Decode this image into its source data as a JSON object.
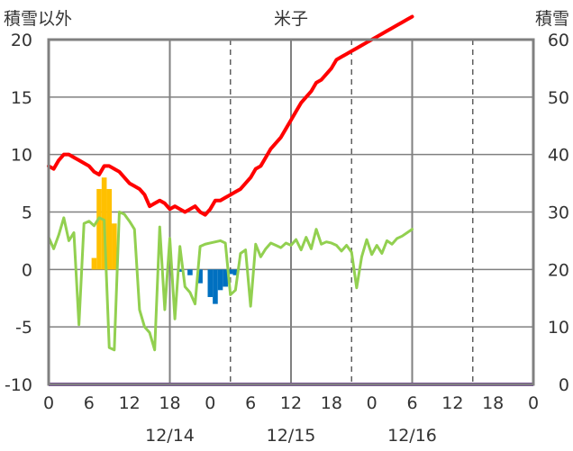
{
  "chart_data": {
    "type": "bar+line",
    "title": "米子",
    "left_axis_title": "積雪以外",
    "right_axis_title": "積雪",
    "left_ylim": [
      -10,
      20
    ],
    "right_ylim": [
      0,
      60
    ],
    "left_yticks": [
      20,
      15,
      10,
      5,
      0,
      -5,
      -10
    ],
    "right_yticks": [
      60,
      50,
      40,
      30,
      20,
      10,
      0
    ],
    "x_hours": [
      0,
      48
    ],
    "x_tick_labels": [
      "0",
      "6",
      "12",
      "18",
      "0",
      "6",
      "12",
      "18",
      "0",
      "6",
      "12",
      "18",
      "0"
    ],
    "date_labels": [
      {
        "label": "12/14",
        "hour": 12
      },
      {
        "label": "12/15",
        "hour": 24
      },
      {
        "label": "12/16",
        "hour": 36
      }
    ],
    "grid": {
      "dashed_hours": [
        12,
        18,
        24,
        30,
        36,
        42
      ],
      "solid_hours": [
        12,
        24,
        36
      ],
      "horizontal_every": 5
    },
    "colors": {
      "precip_pos": "#FFC000",
      "precip_neg": "#0070C0",
      "snow_depth": "#FF0000",
      "temperature": "#92D050",
      "baseline": "#7030A0"
    },
    "series_snow_depth": {
      "axis": "right",
      "color": "#FF0000",
      "x": [
        0,
        0.5,
        1,
        1.5,
        2,
        2.5,
        3,
        3.5,
        4,
        4.5,
        5,
        5.5,
        6,
        6.5,
        7,
        7.5,
        8,
        8.5,
        9,
        9.5,
        10,
        10.5,
        11,
        11.5,
        12,
        12.5,
        13,
        13.5,
        14,
        14.5,
        15,
        15.5,
        16,
        16.5,
        17,
        17.5,
        18,
        18.5,
        19,
        19.5,
        20,
        20.5,
        21,
        21.5,
        22,
        22.5,
        23,
        23.5,
        24,
        24.5,
        25,
        25.5,
        26,
        26.5,
        27,
        27.5,
        28,
        28.5,
        29,
        29.5,
        30,
        30.5,
        31,
        31.5,
        32,
        32.5,
        33,
        33.5,
        34,
        34.5,
        35,
        35.5,
        36
      ],
      "y": [
        38,
        37.5,
        39,
        40,
        40,
        39.5,
        39,
        38.5,
        38,
        37,
        36.5,
        38,
        38,
        37.5,
        37,
        36,
        35,
        34.5,
        34,
        33,
        31,
        31.5,
        32,
        31.5,
        30.5,
        31,
        30.5,
        30,
        30.5,
        31,
        30,
        29.5,
        30.5,
        32,
        32,
        32.5,
        33,
        33.5,
        34,
        35,
        36,
        37.5,
        38,
        39.5,
        41,
        42,
        43,
        44.5,
        46,
        47.5,
        49,
        50,
        51,
        52.5,
        53,
        54,
        55,
        56.5,
        57,
        57.5,
        58,
        58.5,
        59,
        59.5,
        60,
        60.5,
        61,
        61.5,
        62,
        62.5,
        63,
        63.5,
        64
      ],
      "note_dropped": true
    },
    "series_temperature": {
      "axis": "left",
      "color": "#92D050",
      "x": [
        0,
        0.5,
        1,
        1.5,
        2,
        2.5,
        3,
        3.5,
        4,
        4.5,
        5,
        5.5,
        6,
        6.5,
        7,
        7.5,
        8,
        8.5,
        9,
        9.5,
        10,
        10.5,
        11,
        11.5,
        12,
        12.5,
        13,
        13.5,
        14,
        14.5,
        15,
        15.5,
        16,
        16.5,
        17,
        17.5,
        18,
        18.5,
        19,
        19.5,
        20,
        20.5,
        21,
        21.5,
        22,
        22.5,
        23,
        23.5,
        24,
        24.5,
        25,
        25.5,
        26,
        26.5,
        27,
        27.5,
        28,
        28.5,
        29,
        29.5,
        30,
        30.5,
        31,
        31.5,
        32,
        32.5,
        33,
        33.5,
        34,
        34.5,
        35,
        35.5,
        36
      ],
      "y": [
        2.8,
        1.8,
        3,
        4.5,
        2.5,
        3.2,
        -4.8,
        4,
        4.2,
        3.8,
        4.5,
        4.3,
        -6.8,
        -7,
        5,
        4.8,
        4.2,
        3.5,
        -3.5,
        -5,
        -5.5,
        -7,
        3.7,
        -3.5,
        2.7,
        -4.3,
        2,
        -1.5,
        -2,
        -3,
        2,
        2.2,
        2.3,
        2.4,
        2.5,
        2.3,
        -2.2,
        -1.8,
        1.4,
        1.7,
        -3.2,
        2.2,
        1.1,
        1.8,
        2.3,
        2.1,
        1.9,
        2.3,
        2.1,
        2.6,
        1.7,
        2.8,
        1.8,
        3.5,
        2.2,
        2.4,
        2.3,
        2.1,
        1.6,
        2.1,
        1.5,
        -1.6,
        1.1,
        2.6,
        1.3,
        2.1,
        1.4,
        2.5,
        2.2,
        2.7,
        2.9,
        3.2,
        3.5
      ],
      "note_dropped": true
    },
    "series_precip": {
      "axis": "left",
      "x": [
        4.5,
        5,
        5.5,
        6,
        6.5,
        13,
        14,
        15,
        16,
        16.5,
        17,
        17.5,
        18,
        18.5
      ],
      "y": [
        1,
        7,
        8,
        7,
        4,
        -0.2,
        -0.5,
        -1.2,
        -2.4,
        -3,
        -1.8,
        -1.5,
        -0.4,
        -0.5
      ],
      "note_dropped": true
    }
  }
}
